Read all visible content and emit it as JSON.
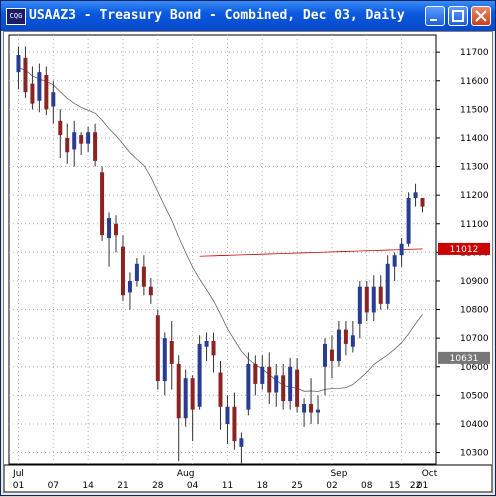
{
  "window": {
    "title": "USAAZ3 - Treasury Bond - Combined, Dec 03, Daily",
    "icon_label": "CQG",
    "buttons": [
      "minimize-icon",
      "maximize-icon",
      "close-icon"
    ]
  },
  "colors": {
    "up": "#283c96",
    "down": "#8c2323",
    "line1": "#cc0000",
    "line2": "#666666",
    "grid": "#b0b0b0",
    "last_tag": "#cc0000"
  },
  "chart_data": {
    "type": "candlestick",
    "title": "",
    "ylim": [
      10260,
      11760
    ],
    "y_ticks": [
      "11700",
      "11600",
      "11500",
      "11400",
      "11300",
      "11200",
      "11100",
      "11000",
      "10900",
      "10800",
      "10700",
      "10600",
      "10500",
      "10400",
      "10300"
    ],
    "price_tags": [
      {
        "label": "11012",
        "value": 11012,
        "style": "red"
      },
      {
        "label": "10631",
        "value": 10631,
        "style": "gray"
      }
    ],
    "month_labels": [
      "Jul",
      "Aug",
      "Sep",
      "Oct"
    ],
    "day_labels": [
      "01",
      "07",
      "14",
      "21",
      "28",
      "04",
      "11",
      "18",
      "25",
      "02",
      "08",
      "15",
      "22",
      "01"
    ],
    "candles": [
      {
        "o": 11630,
        "h": 11720,
        "l": 11570,
        "c": 11690
      },
      {
        "o": 11680,
        "h": 11720,
        "l": 11540,
        "c": 11560
      },
      {
        "o": 11590,
        "h": 11650,
        "l": 11500,
        "c": 11520
      },
      {
        "o": 11530,
        "h": 11660,
        "l": 11490,
        "c": 11630
      },
      {
        "o": 11620,
        "h": 11650,
        "l": 11480,
        "c": 11500
      },
      {
        "o": 11510,
        "h": 11600,
        "l": 11450,
        "c": 11560
      },
      {
        "o": 11460,
        "h": 11500,
        "l": 11330,
        "c": 11410
      },
      {
        "o": 11400,
        "h": 11450,
        "l": 11310,
        "c": 11350
      },
      {
        "o": 11360,
        "h": 11460,
        "l": 11300,
        "c": 11420
      },
      {
        "o": 11410,
        "h": 11420,
        "l": 11340,
        "c": 11380
      },
      {
        "o": 11380,
        "h": 11440,
        "l": 11350,
        "c": 11420
      },
      {
        "o": 11420,
        "h": 11450,
        "l": 11300,
        "c": 11320
      },
      {
        "o": 11280,
        "h": 11300,
        "l": 11040,
        "c": 11060
      },
      {
        "o": 11050,
        "h": 11140,
        "l": 10950,
        "c": 11120
      },
      {
        "o": 11100,
        "h": 11130,
        "l": 11000,
        "c": 11060
      },
      {
        "o": 11020,
        "h": 11060,
        "l": 10830,
        "c": 10850
      },
      {
        "o": 10860,
        "h": 10930,
        "l": 10800,
        "c": 10900
      },
      {
        "o": 10900,
        "h": 10980,
        "l": 10880,
        "c": 10960
      },
      {
        "o": 10950,
        "h": 10990,
        "l": 10850,
        "c": 10880
      },
      {
        "o": 10880,
        "h": 10910,
        "l": 10820,
        "c": 10850
      },
      {
        "o": 10780,
        "h": 10800,
        "l": 10520,
        "c": 10550
      },
      {
        "o": 10550,
        "h": 10720,
        "l": 10500,
        "c": 10700
      },
      {
        "o": 10690,
        "h": 10760,
        "l": 10520,
        "c": 10610
      },
      {
        "o": 10610,
        "h": 10640,
        "l": 10270,
        "c": 10420
      },
      {
        "o": 10420,
        "h": 10590,
        "l": 10390,
        "c": 10560
      },
      {
        "o": 10560,
        "h": 10570,
        "l": 10340,
        "c": 10450
      },
      {
        "o": 10460,
        "h": 10710,
        "l": 10450,
        "c": 10680
      },
      {
        "o": 10670,
        "h": 10720,
        "l": 10620,
        "c": 10690
      },
      {
        "o": 10690,
        "h": 10720,
        "l": 10580,
        "c": 10640
      },
      {
        "o": 10580,
        "h": 10620,
        "l": 10380,
        "c": 10460
      },
      {
        "o": 10400,
        "h": 10500,
        "l": 10330,
        "c": 10460
      },
      {
        "o": 10460,
        "h": 10510,
        "l": 10310,
        "c": 10340
      },
      {
        "o": 10320,
        "h": 10370,
        "l": 10260,
        "c": 10350
      },
      {
        "o": 10450,
        "h": 10650,
        "l": 10430,
        "c": 10610
      },
      {
        "o": 10610,
        "h": 10640,
        "l": 10500,
        "c": 10540
      },
      {
        "o": 10540,
        "h": 10640,
        "l": 10520,
        "c": 10600
      },
      {
        "o": 10600,
        "h": 10650,
        "l": 10470,
        "c": 10510
      },
      {
        "o": 10510,
        "h": 10610,
        "l": 10460,
        "c": 10570
      },
      {
        "o": 10570,
        "h": 10610,
        "l": 10450,
        "c": 10480
      },
      {
        "o": 10480,
        "h": 10630,
        "l": 10450,
        "c": 10600
      },
      {
        "o": 10590,
        "h": 10630,
        "l": 10440,
        "c": 10460
      },
      {
        "o": 10440,
        "h": 10490,
        "l": 10390,
        "c": 10470
      },
      {
        "o": 10470,
        "h": 10560,
        "l": 10400,
        "c": 10440
      },
      {
        "o": 10440,
        "h": 10500,
        "l": 10400,
        "c": 10450
      },
      {
        "o": 10600,
        "h": 10700,
        "l": 10500,
        "c": 10680
      },
      {
        "o": 10660,
        "h": 10710,
        "l": 10560,
        "c": 10620
      },
      {
        "o": 10620,
        "h": 10760,
        "l": 10600,
        "c": 10730
      },
      {
        "o": 10730,
        "h": 10760,
        "l": 10640,
        "c": 10680
      },
      {
        "o": 10670,
        "h": 10760,
        "l": 10650,
        "c": 10710
      },
      {
        "o": 10750,
        "h": 10900,
        "l": 10700,
        "c": 10880
      },
      {
        "o": 10880,
        "h": 10900,
        "l": 10760,
        "c": 10790
      },
      {
        "o": 10790,
        "h": 10920,
        "l": 10760,
        "c": 10880
      },
      {
        "o": 10880,
        "h": 10920,
        "l": 10800,
        "c": 10820
      },
      {
        "o": 10820,
        "h": 10990,
        "l": 10800,
        "c": 10960
      },
      {
        "o": 10950,
        "h": 11000,
        "l": 10900,
        "c": 10990
      },
      {
        "o": 10990,
        "h": 11050,
        "l": 10950,
        "c": 11030
      },
      {
        "o": 11030,
        "h": 11210,
        "l": 11020,
        "c": 11190
      },
      {
        "o": 11190,
        "h": 11240,
        "l": 11160,
        "c": 11210
      },
      {
        "o": 11190,
        "h": 11190,
        "l": 11140,
        "c": 11160
      }
    ]
  }
}
